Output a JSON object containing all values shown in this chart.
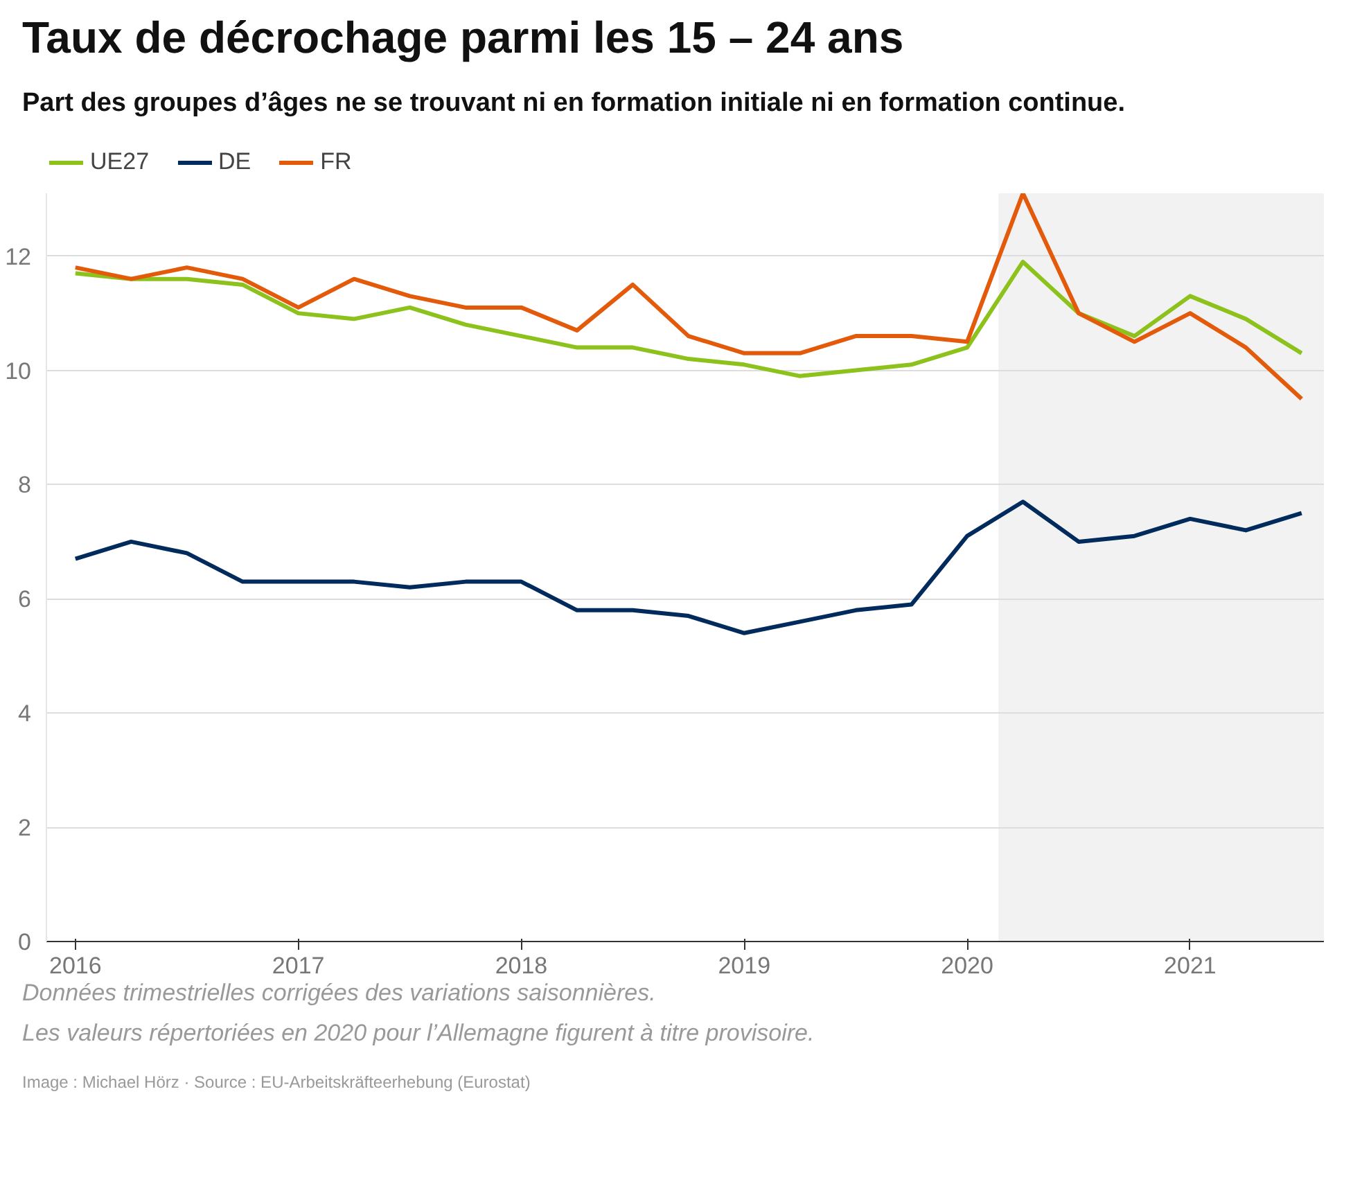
{
  "chart_data": {
    "type": "line",
    "title": "Taux de décrochage parmi les 15 – 24 ans",
    "subtitle": "Part des groupes d’âges ne se trouvant ni en formation initiale ni en formation continue.",
    "x": [
      2016,
      2016.25,
      2016.5,
      2016.75,
      2017,
      2017.25,
      2017.5,
      2017.75,
      2018,
      2018.25,
      2018.5,
      2018.75,
      2019,
      2019.25,
      2019.5,
      2019.75,
      2020,
      2020.25,
      2020.5,
      2020.75,
      2021,
      2021.25,
      2021.5
    ],
    "series": [
      {
        "name": "UE27",
        "color": "#8cc21b",
        "values": [
          11.7,
          11.6,
          11.6,
          11.5,
          11.0,
          10.9,
          11.1,
          10.8,
          10.6,
          10.4,
          10.4,
          10.2,
          10.1,
          9.9,
          10.0,
          10.1,
          10.4,
          11.9,
          11.0,
          10.6,
          11.3,
          10.9,
          10.3
        ]
      },
      {
        "name": "DE",
        "color": "#002b5c",
        "values": [
          6.7,
          7.0,
          6.8,
          6.3,
          6.3,
          6.3,
          6.2,
          6.3,
          6.3,
          5.8,
          5.8,
          5.7,
          5.4,
          5.6,
          5.8,
          5.9,
          7.1,
          7.7,
          7.0,
          7.1,
          7.4,
          7.2,
          7.5
        ]
      },
      {
        "name": "FR",
        "color": "#e35a0b",
        "values": [
          11.8,
          11.6,
          11.8,
          11.6,
          11.1,
          11.6,
          11.3,
          11.1,
          11.1,
          10.7,
          11.5,
          10.6,
          10.3,
          10.3,
          10.6,
          10.6,
          10.5,
          13.1,
          11.0,
          10.5,
          11.0,
          10.4,
          9.5
        ]
      }
    ],
    "xlim": [
      2015.87,
      2021.6
    ],
    "ylim": [
      0,
      13.1
    ],
    "xticks": [
      2016,
      2017,
      2018,
      2019,
      2020,
      2021
    ],
    "yticks": [
      0,
      2,
      4,
      6,
      8,
      10,
      12
    ],
    "bands": [
      {
        "axis": "x",
        "from": 2020.14,
        "to": 2021.6,
        "color": "#f2f2f2"
      }
    ],
    "grid": "y",
    "legend": "top left",
    "line_style": "solid",
    "marker": "none",
    "annotations": [
      "Données trimestrielles corrigées des variations saisonnières.",
      "Les valeurs répertoriées en 2020 pour l’Allemagne figurent à titre provisoire.",
      "Image : Michael Hörz · Source : EU-Arbeitskräfteerhebung (Eurostat)"
    ]
  }
}
